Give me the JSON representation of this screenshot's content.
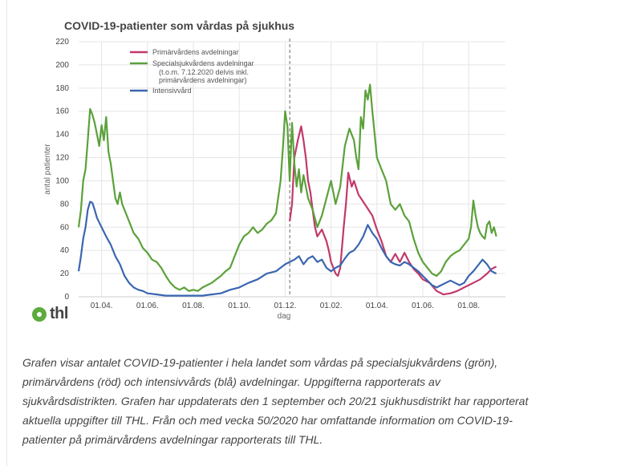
{
  "logo": {
    "text": "thl"
  },
  "caption": "Grafen visar antalet COVID-19-patienter i hela landet som vårdas på specialsjukvårdens (grön), primärvårdens (röd) och intensivvårds (blå) avdelningar. Uppgifterna rapporterats av sjukvårdsdistrikten. Grafen har uppdaterats den 1 september och 20/21 sjukhusdistrikt har rapporterat aktuella uppgifter till THL. Från och med vecka 50/2020 har omfattande information om COVID-19-patienter på primärvårdens avdelningar rapporterats till THL.",
  "chart_data": {
    "type": "line",
    "title": "COVID-19-patienter som vårdas på sjukhus",
    "xlabel": "dag",
    "ylabel": "antal patienter",
    "ylim": [
      0,
      220
    ],
    "xlim": [
      0,
      18.6
    ],
    "yticks": [
      0,
      20,
      40,
      60,
      80,
      100,
      120,
      140,
      160,
      180,
      200,
      220
    ],
    "xticks": [
      {
        "x": 1,
        "label": "01.04."
      },
      {
        "x": 3,
        "label": "01.06."
      },
      {
        "x": 5,
        "label": "01.08."
      },
      {
        "x": 7,
        "label": "01.10."
      },
      {
        "x": 9,
        "label": "01.12."
      },
      {
        "x": 11,
        "label": "01.02."
      },
      {
        "x": 13,
        "label": "01.04."
      },
      {
        "x": 15,
        "label": "01.06."
      },
      {
        "x": 17,
        "label": "01.08."
      }
    ],
    "x_unit_note": "x = months since 1 March 2020",
    "vline_x": 9.2,
    "grid": true,
    "legend_position": "top-center",
    "series": [
      {
        "name": "Primärvårdens avdelningar",
        "color": "#c2386b",
        "points": [
          [
            9.2,
            65
          ],
          [
            9.3,
            80
          ],
          [
            9.4,
            120
          ],
          [
            9.55,
            135
          ],
          [
            9.7,
            147
          ],
          [
            9.8,
            135
          ],
          [
            9.9,
            120
          ],
          [
            10.0,
            100
          ],
          [
            10.1,
            90
          ],
          [
            10.2,
            75
          ],
          [
            10.3,
            60
          ],
          [
            10.4,
            52
          ],
          [
            10.6,
            58
          ],
          [
            10.8,
            48
          ],
          [
            10.9,
            40
          ],
          [
            11.0,
            30
          ],
          [
            11.1,
            25
          ],
          [
            11.2,
            20
          ],
          [
            11.3,
            18
          ],
          [
            11.4,
            25
          ],
          [
            11.55,
            60
          ],
          [
            11.65,
            80
          ],
          [
            11.75,
            107
          ],
          [
            11.9,
            95
          ],
          [
            12.0,
            100
          ],
          [
            12.2,
            88
          ],
          [
            12.4,
            82
          ],
          [
            12.6,
            76
          ],
          [
            12.8,
            70
          ],
          [
            13.0,
            58
          ],
          [
            13.2,
            48
          ],
          [
            13.4,
            35
          ],
          [
            13.6,
            30
          ],
          [
            13.8,
            37
          ],
          [
            14.0,
            30
          ],
          [
            14.2,
            38
          ],
          [
            14.4,
            30
          ],
          [
            14.6,
            24
          ],
          [
            14.8,
            20
          ],
          [
            15.0,
            15
          ],
          [
            15.3,
            12
          ],
          [
            15.6,
            5
          ],
          [
            15.9,
            2
          ],
          [
            16.2,
            3
          ],
          [
            16.5,
            5
          ],
          [
            16.8,
            8
          ],
          [
            17.2,
            12
          ],
          [
            17.5,
            15
          ],
          [
            17.8,
            20
          ],
          [
            18.0,
            24
          ],
          [
            18.2,
            26
          ]
        ]
      },
      {
        "name": "Specialsjukvårdens avdelningar",
        "name_note": "(t.o.m. 7.12.2020 delvis inkl. primärvårdens avdelningar)",
        "color": "#5ba13a",
        "points": [
          [
            0,
            60
          ],
          [
            0.1,
            75
          ],
          [
            0.2,
            100
          ],
          [
            0.3,
            110
          ],
          [
            0.4,
            135
          ],
          [
            0.5,
            162
          ],
          [
            0.6,
            157
          ],
          [
            0.7,
            150
          ],
          [
            0.8,
            140
          ],
          [
            0.9,
            130
          ],
          [
            1.0,
            148
          ],
          [
            1.1,
            135
          ],
          [
            1.2,
            155
          ],
          [
            1.3,
            125
          ],
          [
            1.4,
            115
          ],
          [
            1.5,
            100
          ],
          [
            1.6,
            85
          ],
          [
            1.7,
            80
          ],
          [
            1.8,
            90
          ],
          [
            1.9,
            80
          ],
          [
            2.0,
            75
          ],
          [
            2.2,
            65
          ],
          [
            2.4,
            55
          ],
          [
            2.6,
            50
          ],
          [
            2.8,
            42
          ],
          [
            3.0,
            38
          ],
          [
            3.2,
            32
          ],
          [
            3.4,
            30
          ],
          [
            3.6,
            25
          ],
          [
            3.8,
            18
          ],
          [
            4.0,
            12
          ],
          [
            4.2,
            8
          ],
          [
            4.4,
            6
          ],
          [
            4.6,
            8
          ],
          [
            4.8,
            5
          ],
          [
            5.0,
            6
          ],
          [
            5.2,
            5
          ],
          [
            5.4,
            8
          ],
          [
            5.6,
            10
          ],
          [
            5.8,
            12
          ],
          [
            6.0,
            15
          ],
          [
            6.2,
            18
          ],
          [
            6.4,
            22
          ],
          [
            6.6,
            25
          ],
          [
            6.8,
            35
          ],
          [
            7.0,
            45
          ],
          [
            7.2,
            52
          ],
          [
            7.4,
            55
          ],
          [
            7.6,
            60
          ],
          [
            7.8,
            55
          ],
          [
            8.0,
            58
          ],
          [
            8.2,
            63
          ],
          [
            8.4,
            66
          ],
          [
            8.6,
            72
          ],
          [
            8.8,
            100
          ],
          [
            8.9,
            128
          ],
          [
            9.0,
            160
          ],
          [
            9.1,
            147
          ],
          [
            9.2,
            100
          ],
          [
            9.3,
            150
          ],
          [
            9.4,
            115
          ],
          [
            9.5,
            95
          ],
          [
            9.6,
            110
          ],
          [
            9.7,
            90
          ],
          [
            9.8,
            105
          ],
          [
            9.9,
            95
          ],
          [
            10.0,
            85
          ],
          [
            10.2,
            75
          ],
          [
            10.4,
            60
          ],
          [
            10.6,
            70
          ],
          [
            10.8,
            85
          ],
          [
            11.0,
            100
          ],
          [
            11.2,
            80
          ],
          [
            11.4,
            95
          ],
          [
            11.6,
            130
          ],
          [
            11.8,
            145
          ],
          [
            12.0,
            135
          ],
          [
            12.1,
            120
          ],
          [
            12.2,
            110
          ],
          [
            12.3,
            155
          ],
          [
            12.4,
            145
          ],
          [
            12.5,
            178
          ],
          [
            12.6,
            170
          ],
          [
            12.7,
            183
          ],
          [
            12.8,
            160
          ],
          [
            12.9,
            140
          ],
          [
            13.0,
            120
          ],
          [
            13.2,
            110
          ],
          [
            13.4,
            100
          ],
          [
            13.6,
            80
          ],
          [
            13.8,
            75
          ],
          [
            14.0,
            80
          ],
          [
            14.2,
            70
          ],
          [
            14.4,
            65
          ],
          [
            14.6,
            50
          ],
          [
            14.8,
            38
          ],
          [
            15.0,
            30
          ],
          [
            15.2,
            25
          ],
          [
            15.4,
            20
          ],
          [
            15.6,
            18
          ],
          [
            15.8,
            22
          ],
          [
            16.0,
            30
          ],
          [
            16.2,
            35
          ],
          [
            16.4,
            38
          ],
          [
            16.6,
            40
          ],
          [
            16.8,
            45
          ],
          [
            17.0,
            50
          ],
          [
            17.1,
            60
          ],
          [
            17.2,
            83
          ],
          [
            17.3,
            70
          ],
          [
            17.4,
            60
          ],
          [
            17.5,
            55
          ],
          [
            17.6,
            52
          ],
          [
            17.7,
            50
          ],
          [
            17.8,
            62
          ],
          [
            17.9,
            65
          ],
          [
            18.0,
            55
          ],
          [
            18.1,
            60
          ],
          [
            18.2,
            52
          ]
        ]
      },
      {
        "name": "Intensivvård",
        "color": "#3a66b0",
        "points": [
          [
            0,
            22
          ],
          [
            0.1,
            35
          ],
          [
            0.2,
            50
          ],
          [
            0.3,
            60
          ],
          [
            0.4,
            75
          ],
          [
            0.5,
            82
          ],
          [
            0.6,
            81
          ],
          [
            0.7,
            75
          ],
          [
            0.8,
            68
          ],
          [
            1.0,
            60
          ],
          [
            1.2,
            52
          ],
          [
            1.4,
            45
          ],
          [
            1.6,
            35
          ],
          [
            1.8,
            28
          ],
          [
            2.0,
            18
          ],
          [
            2.2,
            12
          ],
          [
            2.4,
            8
          ],
          [
            2.6,
            6
          ],
          [
            2.8,
            5
          ],
          [
            3.0,
            3
          ],
          [
            3.4,
            2
          ],
          [
            3.8,
            1
          ],
          [
            4.2,
            1
          ],
          [
            4.6,
            1
          ],
          [
            5.0,
            1
          ],
          [
            5.4,
            1
          ],
          [
            5.8,
            2
          ],
          [
            6.2,
            3
          ],
          [
            6.6,
            6
          ],
          [
            7.0,
            8
          ],
          [
            7.4,
            12
          ],
          [
            7.8,
            15
          ],
          [
            8.2,
            20
          ],
          [
            8.6,
            22
          ],
          [
            9.0,
            28
          ],
          [
            9.2,
            30
          ],
          [
            9.4,
            32
          ],
          [
            9.6,
            35
          ],
          [
            9.8,
            28
          ],
          [
            10.0,
            33
          ],
          [
            10.2,
            35
          ],
          [
            10.4,
            30
          ],
          [
            10.6,
            32
          ],
          [
            10.8,
            25
          ],
          [
            11.0,
            22
          ],
          [
            11.2,
            25
          ],
          [
            11.4,
            27
          ],
          [
            11.6,
            33
          ],
          [
            11.8,
            38
          ],
          [
            12.0,
            40
          ],
          [
            12.2,
            45
          ],
          [
            12.4,
            52
          ],
          [
            12.6,
            62
          ],
          [
            12.8,
            55
          ],
          [
            13.0,
            50
          ],
          [
            13.2,
            42
          ],
          [
            13.4,
            35
          ],
          [
            13.6,
            30
          ],
          [
            13.8,
            28
          ],
          [
            14.0,
            27
          ],
          [
            14.2,
            30
          ],
          [
            14.4,
            28
          ],
          [
            14.6,
            25
          ],
          [
            14.8,
            22
          ],
          [
            15.0,
            18
          ],
          [
            15.2,
            14
          ],
          [
            15.4,
            10
          ],
          [
            15.6,
            8
          ],
          [
            15.8,
            10
          ],
          [
            16.0,
            12
          ],
          [
            16.2,
            14
          ],
          [
            16.4,
            12
          ],
          [
            16.6,
            10
          ],
          [
            16.8,
            12
          ],
          [
            17.0,
            18
          ],
          [
            17.2,
            22
          ],
          [
            17.4,
            27
          ],
          [
            17.6,
            32
          ],
          [
            17.8,
            28
          ],
          [
            18.0,
            22
          ],
          [
            18.2,
            20
          ]
        ]
      }
    ]
  }
}
